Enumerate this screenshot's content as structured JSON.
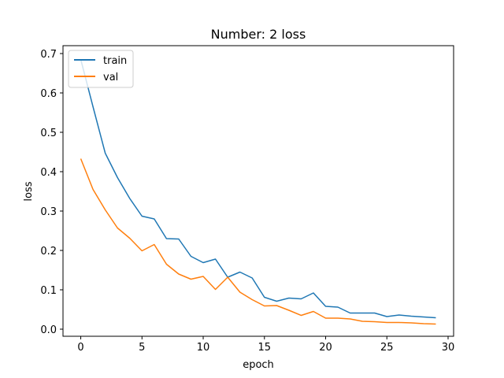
{
  "chart_data": {
    "type": "line",
    "title": "Number: 2 loss",
    "xlabel": "epoch",
    "ylabel": "loss",
    "xlim": [
      -1.45,
      30.45
    ],
    "ylim": [
      -0.018,
      0.72
    ],
    "xticks": [
      0,
      5,
      10,
      15,
      20,
      25,
      30
    ],
    "yticks": [
      0.0,
      0.1,
      0.2,
      0.3,
      0.4,
      0.5,
      0.6,
      0.7
    ],
    "ytick_labels": [
      "0.0",
      "0.1",
      "0.2",
      "0.3",
      "0.4",
      "0.5",
      "0.6",
      "0.7"
    ],
    "grid": false,
    "legend_position": "upper-left",
    "x": [
      0,
      1,
      2,
      3,
      4,
      5,
      6,
      7,
      8,
      9,
      10,
      11,
      12,
      13,
      14,
      15,
      16,
      17,
      18,
      19,
      20,
      21,
      22,
      23,
      24,
      25,
      26,
      27,
      28,
      29
    ],
    "series": [
      {
        "name": "train",
        "color": "#1f77b4",
        "values": [
          0.685,
          0.565,
          0.447,
          0.385,
          0.332,
          0.287,
          0.28,
          0.23,
          0.229,
          0.185,
          0.169,
          0.178,
          0.132,
          0.145,
          0.13,
          0.081,
          0.071,
          0.079,
          0.077,
          0.092,
          0.058,
          0.056,
          0.041,
          0.041,
          0.041,
          0.032,
          0.036,
          0.033,
          0.031,
          0.029
        ]
      },
      {
        "name": "val",
        "color": "#ff7f0e",
        "values": [
          0.433,
          0.355,
          0.303,
          0.257,
          0.231,
          0.199,
          0.215,
          0.165,
          0.14,
          0.127,
          0.134,
          0.101,
          0.132,
          0.094,
          0.075,
          0.059,
          0.06,
          0.048,
          0.035,
          0.045,
          0.028,
          0.028,
          0.026,
          0.02,
          0.019,
          0.017,
          0.017,
          0.016,
          0.014,
          0.013
        ]
      }
    ]
  }
}
